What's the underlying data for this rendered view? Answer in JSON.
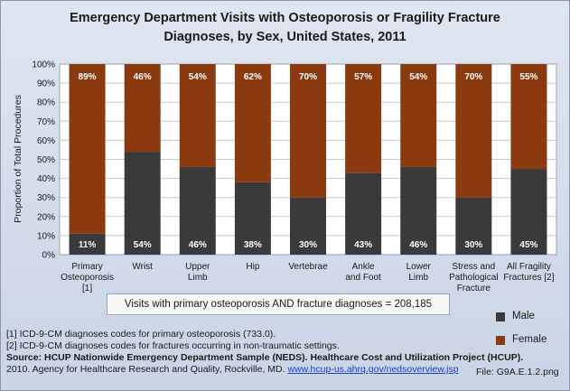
{
  "title_line1": "Emergency Department Visits with Osteoporosis or Fragility Fracture",
  "title_line2": "Diagnoses, by Sex, United States, 2011",
  "chart_data": {
    "type": "bar",
    "stacked": true,
    "ylabel": "Proportion of Total Procedures",
    "ylim": [
      0,
      100
    ],
    "yticks": [
      "0%",
      "10%",
      "20%",
      "30%",
      "40%",
      "50%",
      "60%",
      "70%",
      "80%",
      "90%",
      "100%"
    ],
    "categories": [
      [
        "Primary",
        "Osteoporosis",
        "[1]"
      ],
      [
        "Wrist"
      ],
      [
        "Upper",
        "Limb"
      ],
      [
        "Hip"
      ],
      [
        "Vertebrae"
      ],
      [
        "Ankle",
        "and Foot"
      ],
      [
        "Lower",
        "Limb"
      ],
      [
        "Stress and",
        "Pathological",
        "Fracture"
      ],
      [
        "All Fragility",
        "Fractures [2]"
      ]
    ],
    "series": [
      {
        "name": "Male",
        "color": "#3a3a3a",
        "values": [
          11,
          54,
          46,
          38,
          30,
          43,
          46,
          30,
          45
        ],
        "labels": [
          "11%",
          "54%",
          "46%",
          "38%",
          "30%",
          "43%",
          "46%",
          "30%",
          "45%"
        ]
      },
      {
        "name": "Female",
        "color": "#8b3a10",
        "values": [
          89,
          46,
          54,
          62,
          70,
          57,
          54,
          70,
          55
        ],
        "labels": [
          "89%",
          "46%",
          "54%",
          "62%",
          "70%",
          "57%",
          "54%",
          "70%",
          "55%"
        ]
      }
    ],
    "legend_position": "bottom-right"
  },
  "note": "Visits with primary osteoporosis AND fracture diagnoses = 208,185",
  "footnotes": {
    "f1": "[1] ICD-9-CM diagnoses codes for primary osteoporosis (733.0).",
    "f2": "[2] ICD-9-CM diagnoses codes for fractures occurring in non-traumatic settings.",
    "source": "Source: HCUP Nationwide Emergency Department Sample (NEDS). Healthcare Cost and Utilization Project (HCUP).",
    "source2": "2010. Agency for Healthcare Research and Quality, Rockville, MD.",
    "link": "www.hcup-us.ahrq.gov/nedsoverview.jsp"
  },
  "file_label": "File: G9A.E.1.2.png"
}
